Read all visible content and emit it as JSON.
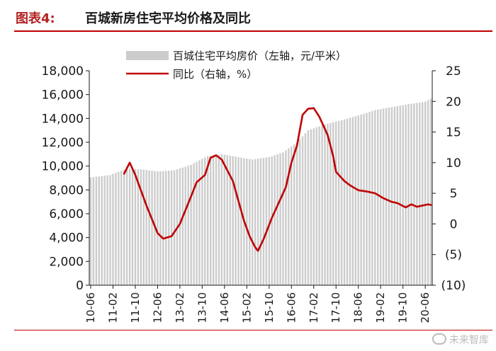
{
  "header": {
    "figure_label": "图表4:",
    "figure_title": "百城新房住宅平均价格及同比"
  },
  "watermark": "未来智库",
  "chart_data": {
    "type": "bar+line",
    "legend": {
      "placement": "top-right",
      "bar_label": "百城住宅平均房价（左轴，元/平米）",
      "line_label": "同比（右轴，%）"
    },
    "colors": {
      "bars": "#cccccc",
      "line": "#c00000",
      "text": "#1a1a1a"
    },
    "grid": false,
    "x_tick_labels": [
      "10-06",
      "11-02",
      "11-10",
      "12-06",
      "13-02",
      "13-10",
      "14-06",
      "15-02",
      "15-10",
      "16-06",
      "17-02",
      "17-10",
      "18-06",
      "19-02",
      "19-10",
      "20-06"
    ],
    "left_axis": {
      "ylim": [
        0,
        18000
      ],
      "tick_labels": [
        "0",
        "2,000",
        "4,000",
        "6,000",
        "8,000",
        "10,000",
        "12,000",
        "14,000",
        "16,000",
        "18,000"
      ]
    },
    "right_axis": {
      "ylim": [
        -10,
        25
      ],
      "tick_labels": [
        "(10)",
        "(5)",
        "0",
        "5",
        "10",
        "15",
        "20",
        "25"
      ]
    },
    "series": [
      {
        "kind": "bar",
        "axis": "left",
        "start": "2010-06",
        "keyframes": [
          [
            "2010-06",
            9050
          ],
          [
            "2011-01",
            9250
          ],
          [
            "2011-06",
            9700
          ],
          [
            "2011-08",
            9780
          ],
          [
            "2012-01",
            9700
          ],
          [
            "2012-06",
            9550
          ],
          [
            "2012-12",
            9650
          ],
          [
            "2013-06",
            10100
          ],
          [
            "2013-12",
            10850
          ],
          [
            "2014-05",
            11000
          ],
          [
            "2014-12",
            10700
          ],
          [
            "2015-04",
            10550
          ],
          [
            "2015-10",
            10750
          ],
          [
            "2016-03",
            11150
          ],
          [
            "2016-08",
            12000
          ],
          [
            "2016-12",
            13000
          ],
          [
            "2017-06",
            13500
          ],
          [
            "2017-12",
            13850
          ],
          [
            "2018-06",
            14250
          ],
          [
            "2018-12",
            14700
          ],
          [
            "2019-06",
            14950
          ],
          [
            "2019-12",
            15200
          ],
          [
            "2020-06",
            15400
          ],
          [
            "2020-08",
            15650
          ]
        ]
      },
      {
        "kind": "line",
        "axis": "right",
        "points": [
          [
            "2011-06",
            8.2
          ],
          [
            "2011-08",
            10.0
          ],
          [
            "2011-10",
            8.0
          ],
          [
            "2012-02",
            3.0
          ],
          [
            "2012-06",
            -1.5
          ],
          [
            "2012-08",
            -2.4
          ],
          [
            "2012-11",
            -2.0
          ],
          [
            "2013-02",
            0.0
          ],
          [
            "2013-06",
            4.5
          ],
          [
            "2013-08",
            6.8
          ],
          [
            "2013-11",
            8.0
          ],
          [
            "2014-01",
            10.8
          ],
          [
            "2014-03",
            11.2
          ],
          [
            "2014-05",
            10.5
          ],
          [
            "2014-09",
            7.0
          ],
          [
            "2015-01",
            0.5
          ],
          [
            "2015-03",
            -2.0
          ],
          [
            "2015-05",
            -3.8
          ],
          [
            "2015-06",
            -4.4
          ],
          [
            "2015-08",
            -2.5
          ],
          [
            "2015-11",
            1.0
          ],
          [
            "2016-02",
            4.0
          ],
          [
            "2016-04",
            6.0
          ],
          [
            "2016-06",
            10.0
          ],
          [
            "2016-08",
            12.8
          ],
          [
            "2016-10",
            17.8
          ],
          [
            "2016-12",
            18.8
          ],
          [
            "2017-02",
            18.9
          ],
          [
            "2017-04",
            17.5
          ],
          [
            "2017-07",
            14.5
          ],
          [
            "2017-09",
            11.0
          ],
          [
            "2017-10",
            8.5
          ],
          [
            "2018-01",
            7.0
          ],
          [
            "2018-03",
            6.3
          ],
          [
            "2018-06",
            5.5
          ],
          [
            "2018-09",
            5.3
          ],
          [
            "2018-12",
            5.0
          ],
          [
            "2019-03",
            4.2
          ],
          [
            "2019-06",
            3.6
          ],
          [
            "2019-08",
            3.4
          ],
          [
            "2019-11",
            2.7
          ],
          [
            "2020-01",
            3.2
          ],
          [
            "2020-03",
            2.8
          ],
          [
            "2020-06",
            3.1
          ],
          [
            "2020-07",
            3.2
          ],
          [
            "2020-08",
            3.1
          ]
        ]
      }
    ]
  }
}
